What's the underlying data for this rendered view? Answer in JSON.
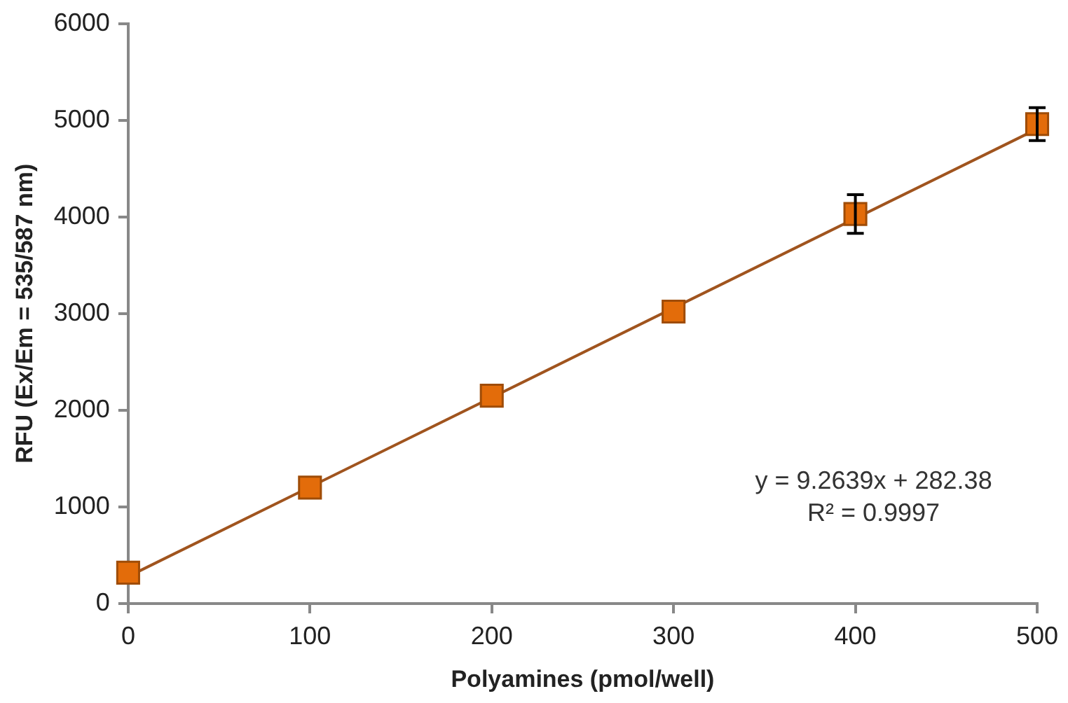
{
  "chart_data": {
    "type": "scatter",
    "xlabel": "Polyamines (pmol/well)",
    "ylabel": "RFU (Ex/Em = 535/587 nm)",
    "xlim": [
      0,
      500
    ],
    "xticks": [
      0,
      100,
      200,
      300,
      400,
      500
    ],
    "ylim": [
      0,
      6000
    ],
    "yticks": [
      0,
      1000,
      2000,
      3000,
      4000,
      5000,
      6000
    ],
    "grid": false,
    "legend": false,
    "marker": "square",
    "series": [
      {
        "type": "line",
        "color": "#a0541e",
        "x": [
          0,
          500
        ],
        "values": [
          280,
          4910
        ],
        "line_style": "solid",
        "marker": "none"
      },
      {
        "color": "#e36c0a",
        "x": [
          0,
          100,
          200,
          300,
          400,
          500
        ],
        "values": [
          320,
          1200,
          2150,
          3020,
          4030,
          4960
        ],
        "errors": [
          null,
          null,
          null,
          null,
          200,
          170
        ]
      }
    ],
    "annotations": [
      "y = 9.2639x + 282.38",
      "R² = 0.9997"
    ]
  }
}
